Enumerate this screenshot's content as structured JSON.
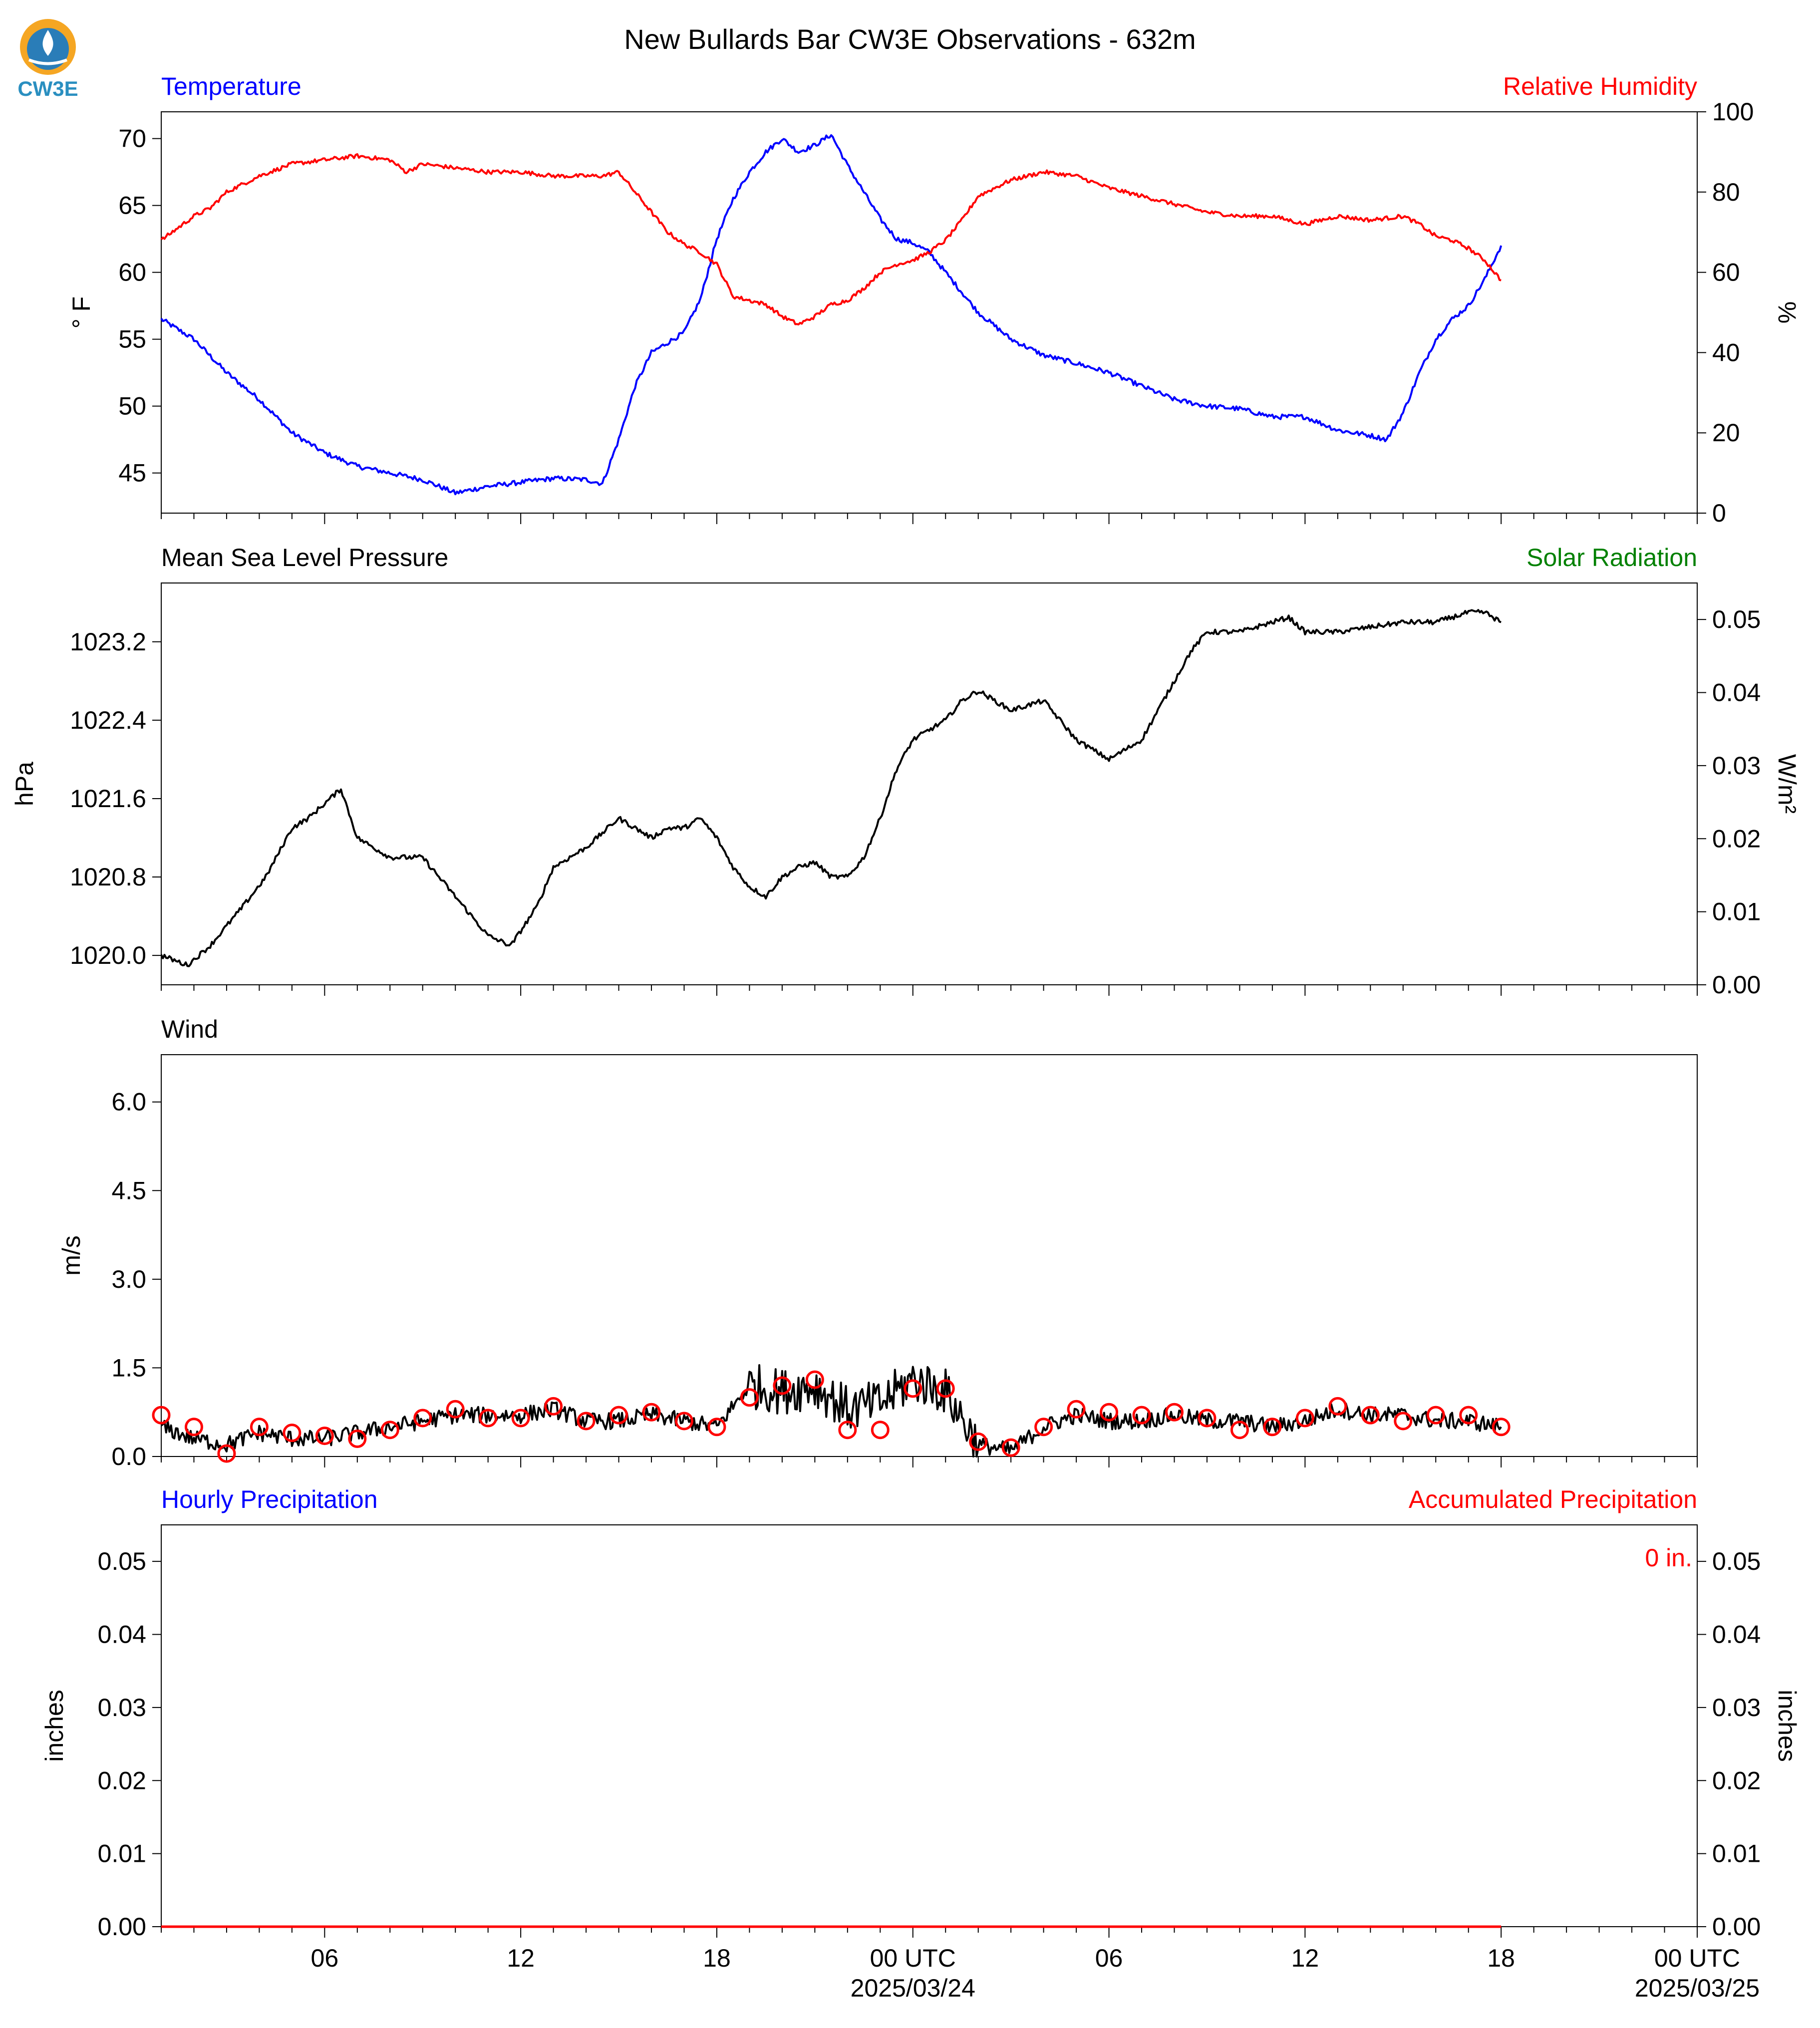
{
  "title": "New Bullards Bar CW3E Observations - 632m",
  "logo": {
    "text": "CW3E",
    "colors": {
      "ring": "#f5a623",
      "drop": "#2a7db8",
      "text": "#2a8fc0"
    }
  },
  "colors": {
    "blue": "#0000ff",
    "red": "#ff0000",
    "green": "#008000",
    "black": "#000000"
  },
  "x_axis": {
    "range_hours": [
      -23,
      24
    ],
    "ticks": [
      {
        "hour": -18,
        "label": "06"
      },
      {
        "hour": -12,
        "label": "12"
      },
      {
        "hour": -6,
        "label": "18"
      },
      {
        "hour": 0,
        "label": "00 UTC",
        "date": "2025/03/24"
      },
      {
        "hour": 6,
        "label": "06"
      },
      {
        "hour": 12,
        "label": "12"
      },
      {
        "hour": 18,
        "label": "18"
      },
      {
        "hour": 24,
        "label": "00 UTC",
        "date": "2025/03/25"
      }
    ]
  },
  "chart_data": [
    {
      "type": "line",
      "left_title": "Temperature",
      "right_title": "Relative Humidity",
      "ylabel_left": "° F",
      "ylabel_right": "%",
      "ylim_left": [
        42,
        72
      ],
      "ylim_right": [
        0,
        100
      ],
      "yticks_left": [
        45,
        50,
        55,
        60,
        65,
        70
      ],
      "yticks_right": [
        0,
        20,
        40,
        60,
        80,
        100
      ],
      "series": [
        {
          "name": "Temperature",
          "axis": "left",
          "color": "#0000ff",
          "x": [
            -23,
            -22,
            -21,
            -20,
            -19,
            -18,
            -17,
            -16,
            -15,
            -14,
            -13,
            -12,
            -11,
            -10,
            -9.5,
            -9,
            -8.5,
            -8,
            -7,
            -6.5,
            -6,
            -5.5,
            -5,
            -4.5,
            -4,
            -3.5,
            -3,
            -2.5,
            -2,
            -1.5,
            -1,
            -0.5,
            0,
            0.5,
            1,
            1.5,
            2,
            3,
            4,
            5,
            6,
            7,
            8,
            9,
            10,
            11,
            12,
            13,
            14,
            14.5,
            15,
            15.5,
            16,
            16.5,
            17,
            17.5,
            18
          ],
          "y": [
            56.5,
            55.0,
            52.5,
            50.5,
            48.0,
            46.5,
            45.5,
            45.0,
            44.5,
            43.5,
            44.0,
            44.3,
            44.6,
            44.5,
            44.2,
            47.5,
            51.5,
            54.0,
            55.5,
            58.0,
            62.5,
            65.5,
            67.5,
            69.0,
            70.0,
            69.0,
            69.5,
            70.3,
            68.0,
            66.0,
            64.0,
            62.5,
            62.2,
            61.5,
            60.0,
            58.5,
            57.0,
            55.0,
            53.8,
            53.2,
            52.5,
            51.5,
            50.5,
            50.0,
            49.8,
            49.2,
            49.2,
            48.2,
            47.8,
            47.5,
            49.5,
            52.5,
            55.0,
            56.5,
            57.5,
            59.5,
            62.0
          ]
        },
        {
          "name": "Relative Humidity",
          "axis": "right",
          "color": "#ff0000",
          "x": [
            -23,
            -22.5,
            -22,
            -21.5,
            -21,
            -20,
            -19,
            -18,
            -17,
            -16,
            -15.5,
            -15,
            -14,
            -13,
            -12,
            -11,
            -10,
            -9.5,
            -9,
            -8.5,
            -8,
            -7.5,
            -7,
            -6.5,
            -6,
            -5.5,
            -5,
            -4.5,
            -4,
            -3.5,
            -3,
            -2.5,
            -2,
            -1.5,
            -1,
            -0.5,
            0,
            0.5,
            1,
            1.5,
            2,
            3,
            4,
            5,
            6,
            7,
            8,
            9,
            10,
            11,
            12,
            13,
            14,
            15,
            15.5,
            16,
            16.5,
            17,
            17.5,
            18
          ],
          "y": [
            68,
            71,
            74,
            76,
            80,
            84,
            87,
            88,
            89,
            88,
            85,
            87,
            86,
            85,
            85,
            84,
            84,
            84,
            85,
            80,
            75,
            70,
            67,
            65,
            62,
            54,
            53,
            52,
            49,
            47,
            49,
            52,
            53,
            56,
            60,
            62,
            63,
            65,
            68,
            73,
            79,
            83,
            85,
            84,
            81,
            79,
            77,
            75,
            74,
            74,
            72,
            74,
            73,
            74,
            72,
            69,
            68,
            66,
            63,
            58
          ]
        }
      ]
    },
    {
      "type": "line",
      "left_title": "Mean Sea Level Pressure",
      "right_title": "Solar Radiation",
      "ylabel_left": "hPa",
      "ylabel_right": "W/m²",
      "ylim_left": [
        1019.7,
        1023.8
      ],
      "ylim_right": [
        0.0,
        0.055
      ],
      "yticks_left": [
        1020.0,
        1020.8,
        1021.6,
        1022.4,
        1023.2
      ],
      "yticks_left_labels": [
        "1020.0",
        "1020.8",
        "1021.6",
        "1022.4",
        "1023.2"
      ],
      "yticks_right": [
        0.0,
        0.01,
        0.02,
        0.03,
        0.04,
        0.05
      ],
      "yticks_right_labels": [
        "0.00",
        "0.01",
        "0.02",
        "0.03",
        "0.04",
        "0.05"
      ],
      "series": [
        {
          "name": "Mean Sea Level Pressure",
          "axis": "left",
          "color": "#000000",
          "x": [
            -23,
            -22.2,
            -21.5,
            -20.5,
            -19.8,
            -19,
            -18.5,
            -17.5,
            -17,
            -16.5,
            -16,
            -15,
            -14,
            -13,
            -12.3,
            -11.5,
            -11,
            -10,
            -9,
            -8,
            -7.5,
            -7,
            -6.5,
            -6,
            -5.5,
            -5,
            -4.5,
            -4,
            -3.5,
            -3,
            -2.5,
            -2,
            -1.5,
            -1,
            -0.5,
            0,
            0.5,
            1,
            1.5,
            2,
            3,
            4,
            5,
            6,
            7,
            8,
            8.5,
            9,
            10,
            11,
            11.5,
            12,
            13,
            14,
            15,
            16,
            17,
            17.5,
            18
          ],
          "y": [
            1020.0,
            1019.9,
            1020.1,
            1020.5,
            1020.8,
            1021.3,
            1021.4,
            1021.7,
            1021.2,
            1021.1,
            1021.0,
            1021.0,
            1020.6,
            1020.2,
            1020.1,
            1020.5,
            1020.9,
            1021.1,
            1021.4,
            1021.2,
            1021.3,
            1021.3,
            1021.4,
            1021.2,
            1020.9,
            1020.7,
            1020.6,
            1020.8,
            1020.9,
            1020.95,
            1020.8,
            1020.8,
            1021.0,
            1021.4,
            1021.9,
            1022.2,
            1022.3,
            1022.4,
            1022.6,
            1022.7,
            1022.5,
            1022.6,
            1022.2,
            1022.0,
            1022.2,
            1022.8,
            1023.1,
            1023.3,
            1023.3,
            1023.4,
            1023.45,
            1023.3,
            1023.3,
            1023.35,
            1023.4,
            1023.4,
            1023.5,
            1023.5,
            1023.4
          ]
        }
      ]
    },
    {
      "type": "line",
      "left_title": "Wind",
      "ylabel_left": "m/s",
      "ylim_left": [
        0,
        6.8
      ],
      "yticks_left": [
        0.0,
        1.5,
        3.0,
        4.5,
        6.0
      ],
      "yticks_left_labels": [
        "0.0",
        "1.5",
        "3.0",
        "4.5",
        "6.0"
      ],
      "series": [
        {
          "name": "Wind",
          "axis": "left",
          "color": "#000000",
          "x": [
            -23,
            -22,
            -21,
            -20,
            -19,
            -18,
            -17,
            -16,
            -15,
            -14,
            -13,
            -12,
            -11,
            -10,
            -9,
            -8,
            -7,
            -6,
            -5,
            -4,
            -3,
            -2,
            -1,
            0,
            1,
            2,
            3,
            4,
            5,
            6,
            7,
            8,
            9,
            10,
            11,
            12,
            13,
            14,
            15,
            16,
            17,
            18
          ],
          "y": [
            0.5,
            0.3,
            0.2,
            0.4,
            0.3,
            0.3,
            0.4,
            0.5,
            0.6,
            0.7,
            0.7,
            0.7,
            0.8,
            0.6,
            0.6,
            0.7,
            0.6,
            0.5,
            1.2,
            1.1,
            1.2,
            0.8,
            0.9,
            1.3,
            1.1,
            0.2,
            0.1,
            0.5,
            0.7,
            0.6,
            0.6,
            0.7,
            0.6,
            0.6,
            0.5,
            0.6,
            0.8,
            0.7,
            0.7,
            0.6,
            0.6,
            0.5
          ]
        },
        {
          "name": "Wind",
          "axis": "left",
          "color": "#ff0000",
          "style": "markers",
          "x": [
            -23,
            -22,
            -21,
            -20,
            -19,
            -18,
            -17,
            -16,
            -15,
            -14,
            -13,
            -12,
            -11,
            -10,
            -9,
            -8,
            -7,
            -6,
            -5,
            -4,
            -3,
            -2,
            -1,
            0,
            1,
            2,
            3,
            4,
            5,
            6,
            7,
            8,
            9,
            10,
            11,
            12,
            13,
            14,
            15,
            16,
            17,
            18
          ],
          "y": [
            0.7,
            0.5,
            0.05,
            0.5,
            0.4,
            0.35,
            0.3,
            0.45,
            0.65,
            0.8,
            0.65,
            0.65,
            0.85,
            0.6,
            0.7,
            0.75,
            0.6,
            0.5,
            1.0,
            1.2,
            1.3,
            0.45,
            0.45,
            1.15,
            1.15,
            0.25,
            0.15,
            0.5,
            0.8,
            0.75,
            0.7,
            0.75,
            0.65,
            0.45,
            0.5,
            0.65,
            0.85,
            0.7,
            0.6,
            0.7,
            0.7,
            0.5
          ]
        }
      ]
    },
    {
      "type": "line",
      "left_title": "Hourly Precipitation",
      "right_title": "Accumulated Precipitation",
      "ylabel_left": "inches",
      "ylabel_right": "inches",
      "ylim_left": [
        0,
        0.055
      ],
      "ylim_right": [
        0,
        0.055
      ],
      "yticks_left": [
        0.0,
        0.01,
        0.02,
        0.03,
        0.04,
        0.05
      ],
      "yticks_left_labels": [
        "0.00",
        "0.01",
        "0.02",
        "0.03",
        "0.04",
        "0.05"
      ],
      "yticks_right": [
        0.0,
        0.01,
        0.02,
        0.03,
        0.04,
        0.05
      ],
      "yticks_right_labels": [
        "0.00",
        "0.01",
        "0.02",
        "0.03",
        "0.04",
        "0.05"
      ],
      "annotation": "0 in.",
      "series": [
        {
          "name": "Hourly Precipitation",
          "axis": "left",
          "color": "#ff0000",
          "x": [
            -23,
            18
          ],
          "y": [
            0,
            0
          ]
        }
      ]
    }
  ]
}
